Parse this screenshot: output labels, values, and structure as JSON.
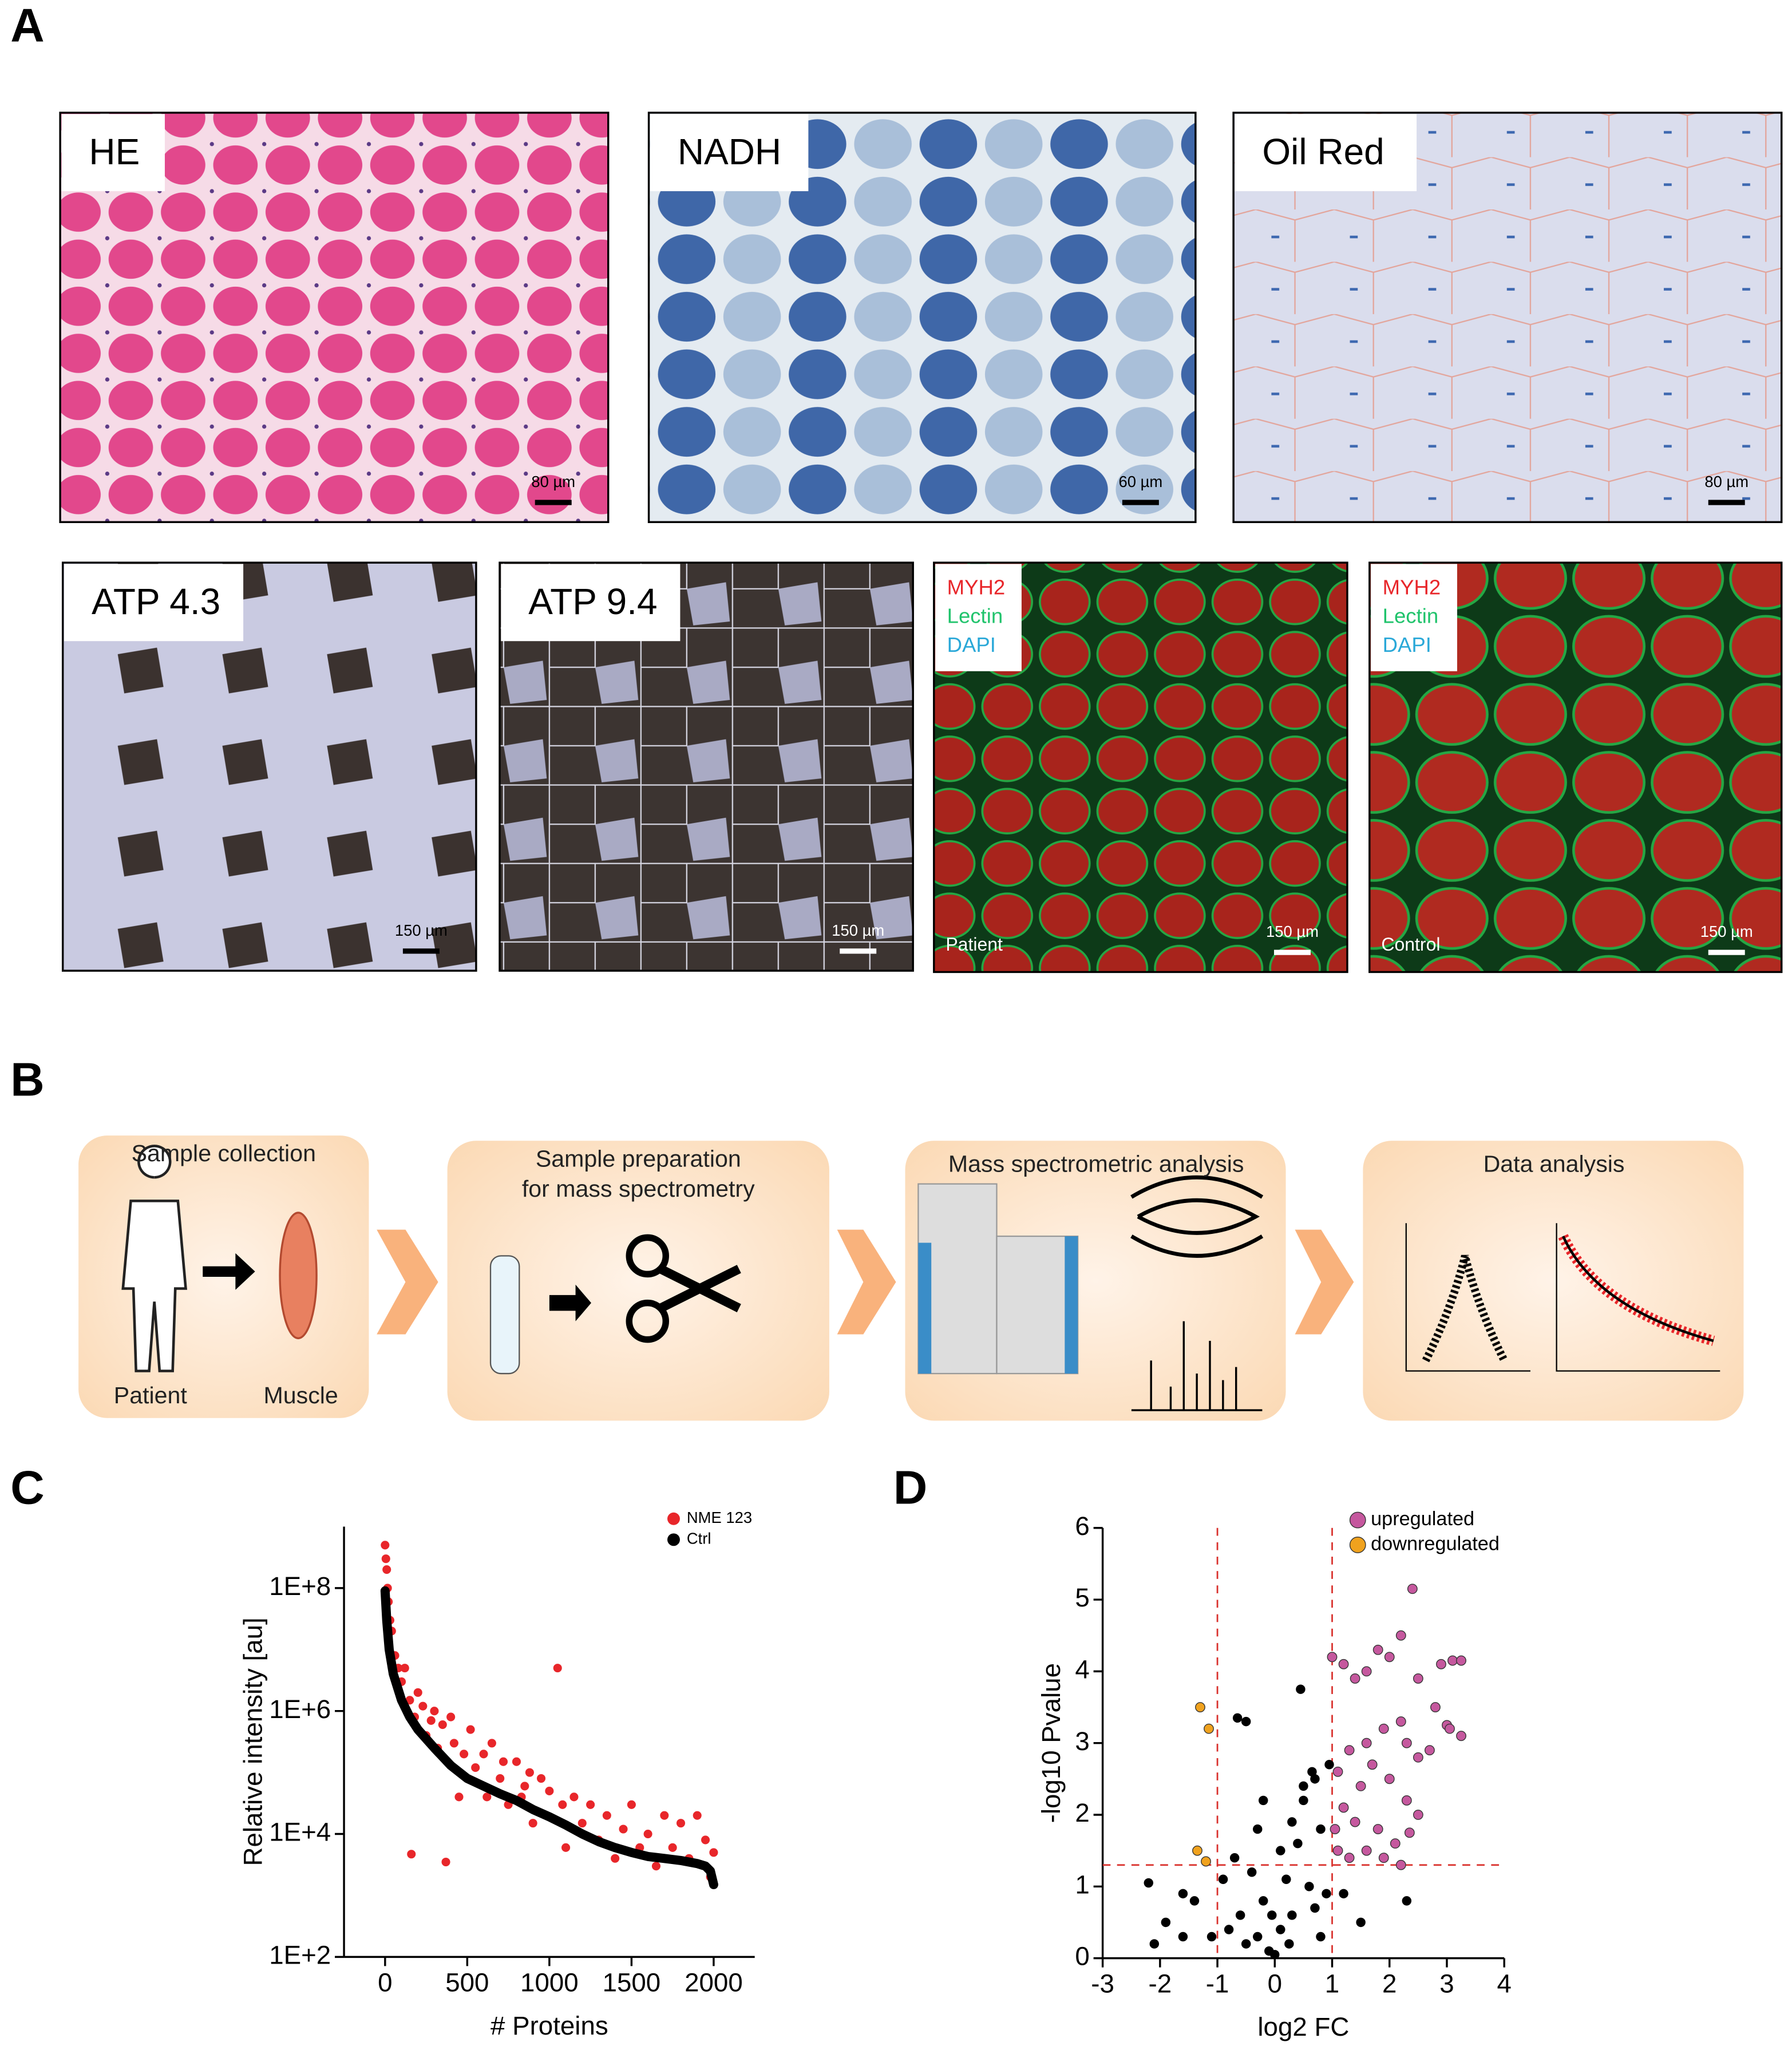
{
  "panel_labels": [
    "A",
    "B",
    "C",
    "D"
  ],
  "panel_a": [
    {
      "label": "HE",
      "scale_bar": "80 µm"
    },
    {
      "label": "NADH",
      "scale_bar": "60 µm"
    },
    {
      "label": "Oil Red",
      "scale_bar": "80 µm"
    },
    {
      "label": "ATP 4.3",
      "scale_bar": "150 µm"
    },
    {
      "label": "ATP 9.4",
      "scale_bar": "150 µm"
    },
    {
      "channels": [
        "MYH2",
        "Lectin",
        "DAPI"
      ],
      "sample": "Patient",
      "scale_bar": "150 µm"
    },
    {
      "channels": [
        "MYH2",
        "Lectin",
        "DAPI"
      ],
      "sample": "Control",
      "scale_bar": "150 µm"
    }
  ],
  "panel_b": {
    "steps": [
      {
        "title": [
          "Sample collection"
        ],
        "labels": [
          "Patient",
          "Muscle"
        ]
      },
      {
        "title": [
          "Sample preparation",
          "for mass spectrometry"
        ]
      },
      {
        "title": [
          "Mass spectrometric analysis"
        ]
      },
      {
        "title": [
          "Data analysis"
        ]
      }
    ]
  },
  "chart_data": [
    {
      "type": "scatter",
      "xlabel": "# Proteins",
      "ylabel": "Relative intensity [au]",
      "log_y": true,
      "xlim": [
        -250,
        2250
      ],
      "xticks": [
        0,
        500,
        1000,
        1500,
        2000
      ],
      "ylim": [
        100,
        1000000000
      ],
      "yticks": [
        {
          "value": 100,
          "label": "1E+2"
        },
        {
          "value": 10000,
          "label": "1E+4"
        },
        {
          "value": 1000000,
          "label": "1E+6"
        },
        {
          "value": 100000000,
          "label": "1E+8"
        }
      ],
      "series": [
        {
          "name": "NME 123",
          "color": "#e8262a",
          "x": [
            0,
            5,
            10,
            15,
            20,
            30,
            40,
            60,
            80,
            100,
            120,
            150,
            160,
            180,
            200,
            230,
            250,
            280,
            300,
            320,
            350,
            370,
            380,
            400,
            420,
            450,
            480,
            520,
            550,
            600,
            620,
            650,
            700,
            720,
            750,
            800,
            830,
            850,
            880,
            900,
            950,
            980,
            1000,
            1050,
            1080,
            1100,
            1150,
            1200,
            1250,
            1300,
            1350,
            1400,
            1450,
            1500,
            1550,
            1600,
            1650,
            1700,
            1750,
            1800,
            1850,
            1900,
            1950,
            1980,
            2000,
            2000
          ],
          "values": [
            500000000,
            300000000,
            200000000,
            100000000,
            60000000,
            30000000,
            20000000,
            8000000,
            5000000,
            3000000,
            5000000,
            1500000,
            4700,
            800000,
            2000000,
            1200000,
            400000,
            700000,
            1000000,
            250000,
            600000,
            3500,
            150000,
            800000,
            300000,
            40000,
            200000,
            500000,
            120000,
            200000,
            40000,
            300000,
            80000,
            150000,
            30000,
            150000,
            40000,
            60000,
            100000,
            15000,
            80000,
            20000,
            50000,
            5000000,
            30000,
            6000,
            40000,
            15000,
            30000,
            8000,
            20000,
            4000,
            12000,
            30000,
            6000,
            10000,
            3000,
            20000,
            6000,
            15000,
            4000,
            20000,
            8000,
            2000,
            5000,
            1500
          ]
        },
        {
          "name": "Ctrl",
          "color": "#000000",
          "line": true,
          "x": [
            0,
            10,
            25,
            50,
            100,
            150,
            200,
            300,
            400,
            500,
            600,
            700,
            800,
            900,
            1000,
            1100,
            1200,
            1300,
            1400,
            1500,
            1600,
            1700,
            1800,
            1900,
            1950,
            1980,
            2000
          ],
          "values": [
            90000000,
            30000000,
            10000000,
            4000000,
            1500000,
            800000,
            500000,
            250000,
            130000,
            80000,
            60000,
            45000,
            35000,
            25000,
            19000,
            14000,
            10000,
            7500,
            6000,
            5000,
            4300,
            4000,
            3700,
            3300,
            3000,
            2500,
            1500
          ]
        }
      ]
    },
    {
      "type": "scatter",
      "xlabel": "log2 FC",
      "ylabel": "-log10 Pvalue",
      "xlim": [
        -3,
        4
      ],
      "xticks": [
        -3,
        -2,
        -1,
        0,
        1,
        2,
        3,
        4
      ],
      "ylim": [
        0,
        6
      ],
      "yticks": [
        0,
        1,
        2,
        3,
        4,
        5,
        6
      ],
      "thresholds": {
        "x": [
          -1,
          1
        ],
        "y": [
          1.3
        ],
        "color": "#d9302c"
      },
      "series": [
        {
          "color": "#000000",
          "x": [
            -2.2,
            -1.9,
            -1.6,
            -1.4,
            -1.1,
            -0.9,
            -0.8,
            -0.7,
            -0.6,
            -0.5,
            -0.4,
            -0.3,
            -0.2,
            -0.1,
            0,
            0.1,
            0.2,
            0.3,
            0.4,
            0.5,
            0.6,
            0.7,
            0.8,
            0.9,
            0.95,
            0.3,
            0.5,
            0.65,
            0.45,
            -0.5,
            -0.65,
            -0.2,
            0.1,
            -0.3,
            -1.6,
            -2.1,
            2.3,
            1.5,
            1.2,
            0.8,
            -0.05,
            0.25,
            0.7
          ],
          "values": [
            1.05,
            0.5,
            0.3,
            0.8,
            0.3,
            1.1,
            0.4,
            1.4,
            0.6,
            0.2,
            1.2,
            0.3,
            0.8,
            0.1,
            0.05,
            0.4,
            1.1,
            0.6,
            1.6,
            2.2,
            1.0,
            2.5,
            1.8,
            0.9,
            2.7,
            1.9,
            2.4,
            2.6,
            3.75,
            3.3,
            3.35,
            2.2,
            1.5,
            1.8,
            0.9,
            0.2,
            0.8,
            0.5,
            0.9,
            0.3,
            0.6,
            0.2,
            0.7
          ]
        },
        {
          "name": "upregulated",
          "color": "#c5589e",
          "x": [
            1.0,
            1.2,
            1.4,
            1.6,
            1.8,
            2.0,
            2.2,
            2.4,
            2.5,
            2.9,
            3.1,
            3.25,
            2.8,
            3.0,
            3.05,
            3.25,
            2.2,
            2.5,
            2.3,
            1.9,
            1.6,
            1.3,
            1.1,
            1.5,
            1.7,
            2.0,
            2.3,
            1.2,
            1.4,
            1.8,
            2.1,
            2.5,
            1.1,
            1.3,
            1.6,
            1.9,
            2.2,
            1.05,
            2.35,
            2.7
          ],
          "values": [
            4.2,
            4.1,
            3.9,
            4.0,
            4.3,
            4.2,
            4.5,
            5.15,
            3.9,
            4.1,
            4.15,
            4.15,
            3.5,
            3.25,
            3.2,
            3.1,
            3.3,
            2.8,
            3.0,
            3.2,
            3.0,
            2.9,
            2.6,
            2.4,
            2.7,
            2.5,
            2.2,
            2.1,
            1.9,
            1.8,
            1.6,
            2.0,
            1.5,
            1.4,
            1.5,
            1.4,
            1.3,
            1.8,
            1.75,
            2.9
          ]
        },
        {
          "name": "downregulated",
          "color": "#f0a21e",
          "x": [
            -1.3,
            -1.15,
            -1.35,
            -1.2
          ],
          "values": [
            3.5,
            3.2,
            1.5,
            1.35
          ]
        }
      ]
    }
  ]
}
